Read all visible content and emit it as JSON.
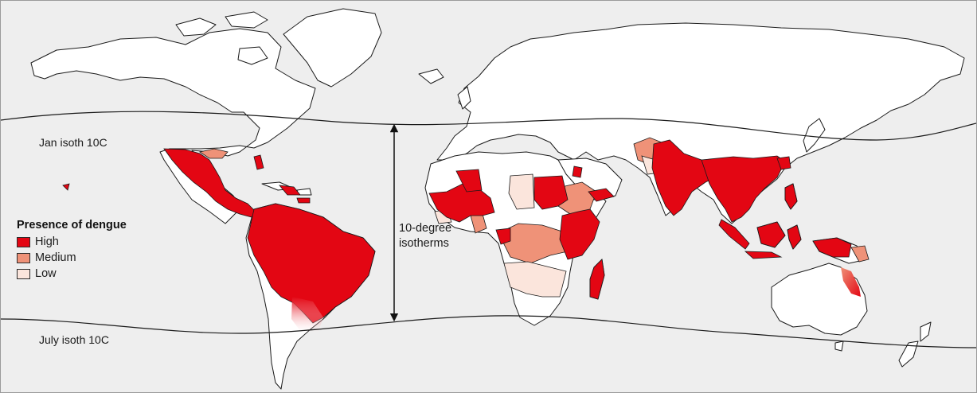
{
  "map": {
    "legend": {
      "title": "Presence of dengue",
      "items": [
        {
          "label": "High",
          "color": "#e30613"
        },
        {
          "label": "Medium",
          "color": "#ef9278"
        },
        {
          "label": "Low",
          "color": "#fbe5dc"
        }
      ]
    },
    "isotherm_note": {
      "line1": "10-degree",
      "line2": "isotherms"
    },
    "isotherm_labels": {
      "north": "Jan isoth 10C",
      "south": "July isoth 10C"
    },
    "colors": {
      "ocean": "#eeeeee",
      "land": "#ffffff",
      "border": "#1a1a1a",
      "high": "#e30613",
      "medium": "#ef9278",
      "low": "#fbe5dc"
    },
    "layers": [
      "land",
      "dengue-high",
      "dengue-medium",
      "dengue-low",
      "isotherms",
      "arrow"
    ]
  }
}
